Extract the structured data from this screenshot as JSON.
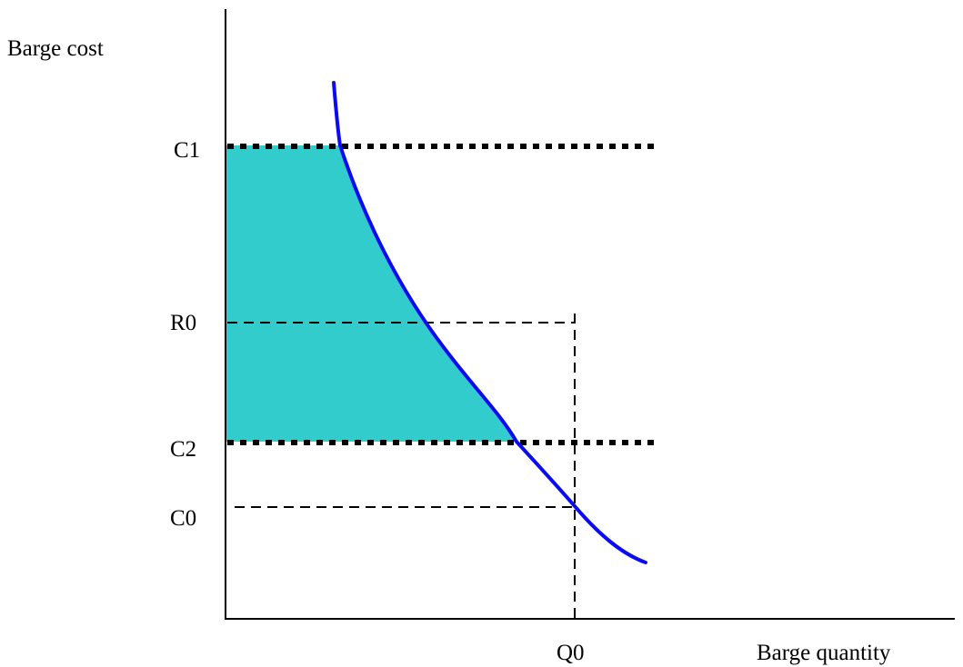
{
  "colors": {
    "curve": "#0b0bf0",
    "shaded_area": "#33cccc",
    "axes": "#000000",
    "dotted_lines": "#000000",
    "dashed_lines": "#000000"
  },
  "axes": {
    "y_label": "Barge cost",
    "x_label": "Barge quantity"
  },
  "levels": {
    "c1": "C1",
    "r0": "R0",
    "c2": "C2",
    "c0": "C0"
  },
  "quantities": {
    "q0": "Q0"
  }
}
